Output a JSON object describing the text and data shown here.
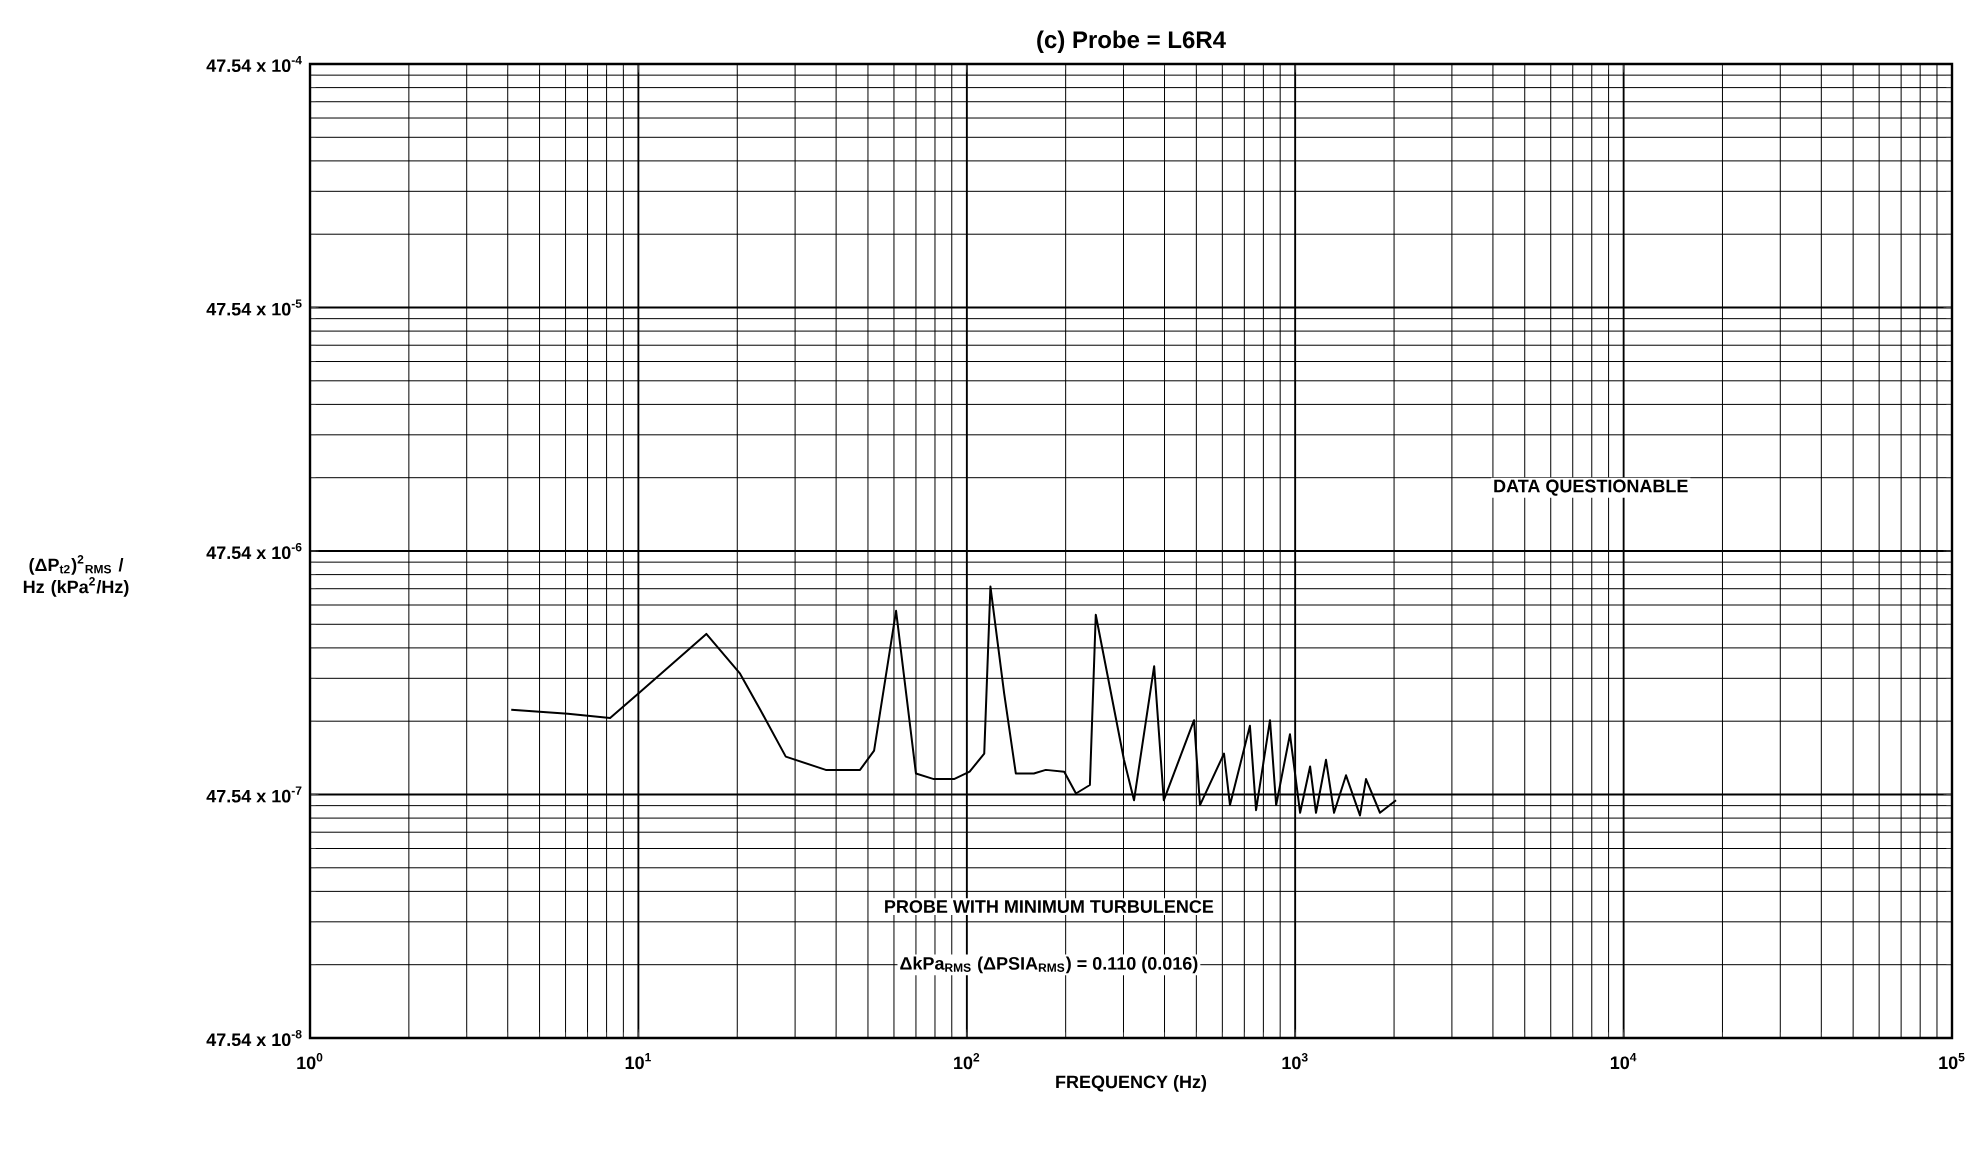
{
  "chart_data": {
    "type": "line",
    "title": "(c) Probe = L6R4",
    "xlabel": "FREQUENCY (Hz)",
    "ylabel": "(ΔP$_{t2}$)$^{2}$$_{RMS}$ / Hz (kPa$^{2}$/Hz)",
    "log": "xy",
    "grid": true,
    "marker": "none",
    "line_style": "solid",
    "xlim": [
      1,
      100000
    ],
    "xticks": [
      {
        "value": 1,
        "label": "10$^{0}$"
      },
      {
        "value": 10,
        "label": "10$^{1}$"
      },
      {
        "value": 100,
        "label": "10$^{2}$"
      },
      {
        "value": 1000,
        "label": "10$^{3}$"
      },
      {
        "value": 10000,
        "label": "10$^{4}$"
      },
      {
        "value": 100000,
        "label": "10$^{5}$"
      }
    ],
    "ylim": [
      4.754e-07,
      0.004754
    ],
    "yticks": [
      {
        "value": 4.754e-07,
        "label": "47.54 x 10$^{-8}$"
      },
      {
        "value": 4.754e-06,
        "label": "47.54 x 10$^{-7}$"
      },
      {
        "value": 4.754e-05,
        "label": "47.54 x 10$^{-6}$"
      },
      {
        "value": 0.0004754,
        "label": "47.54 x 10$^{-5}$"
      },
      {
        "value": 0.004754,
        "label": "47.54 x 10$^{-4}$"
      }
    ],
    "series": [
      {
        "color": "#000000",
        "x": [
          4.1,
          6.1,
          8.2,
          10.1,
          16.1,
          20.4,
          23.5,
          28.1,
          37.2,
          47.3,
          52.2,
          60.9,
          70.0,
          79.4,
          91.4,
          102,
          113,
          118,
          130,
          141,
          160,
          174,
          198,
          215,
          237,
          247,
          301,
          323,
          372,
          398,
          492,
          513,
          607,
          633,
          728,
          760,
          838,
          875,
          964,
          1035,
          1110,
          1157,
          1241,
          1313,
          1428,
          1575,
          1643,
          1812,
          2028
        ],
        "values": [
          1.06e-05,
          1.02e-05,
          9.8e-06,
          1.25e-05,
          2.17e-05,
          1.49e-05,
          1.06e-05,
          6.8e-06,
          6e-06,
          6e-06,
          7.2e-06,
          2.7e-05,
          5.8e-06,
          5.5e-06,
          5.5e-06,
          5.9e-06,
          7e-06,
          3.4e-05,
          1.23e-05,
          5.8e-06,
          5.8e-06,
          6e-06,
          5.9e-06,
          4.8e-06,
          5.2e-06,
          2.6e-05,
          6.6e-06,
          4.5e-06,
          1.6e-05,
          4.5e-06,
          9.6e-06,
          4.3e-06,
          7e-06,
          4.3e-06,
          9.1e-06,
          4.1e-06,
          9.6e-06,
          4.3e-06,
          8.4e-06,
          4e-06,
          6.2e-06,
          4e-06,
          6.6e-06,
          4e-06,
          5.7e-06,
          3.9e-06,
          5.5e-06,
          4e-06,
          4.5e-06
        ]
      }
    ],
    "annotations": [
      "DATA QUESTIONABLE",
      "PROBE WITH MINIMUM TURBULENCE",
      "ΔkPa$_{RMS}$ (ΔPSIA$_{RMS}$) = 0.110 (0.016)"
    ]
  }
}
